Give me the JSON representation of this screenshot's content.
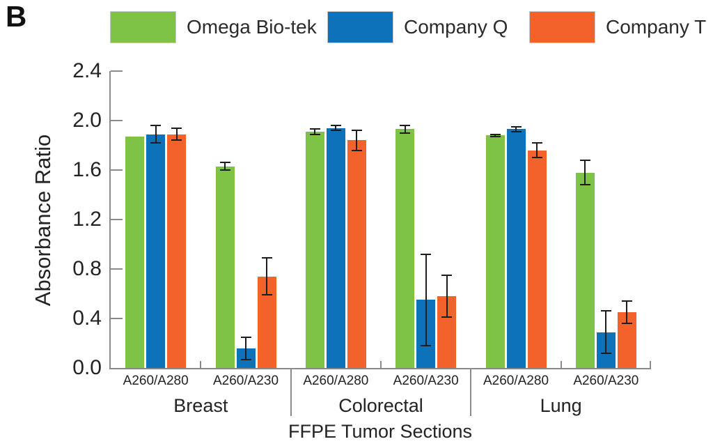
{
  "panel_label": "B",
  "legend": {
    "items": [
      {
        "label": "Omega Bio-tek",
        "color": "#7EC345"
      },
      {
        "label": "Company Q",
        "color": "#0D72B9"
      },
      {
        "label": "Company T",
        "color": "#F1632B"
      }
    ]
  },
  "chart_data": {
    "type": "bar",
    "title": "",
    "ylabel": "Absorbance Ratio",
    "xlabel": "FFPE Tumor Sections",
    "ylim": [
      0,
      2.4
    ],
    "ytick_step": 0.4,
    "ytick_labels": [
      "0.0",
      "0.4",
      "0.8",
      "1.2",
      "1.6",
      "2.0",
      "2.4"
    ],
    "grid": false,
    "legend_position": "top",
    "error_bars": true,
    "series": [
      "Omega Bio-tek",
      "Company Q",
      "Company T"
    ],
    "series_colors": [
      "#7EC345",
      "#0D72B9",
      "#F1632B"
    ],
    "groups": [
      {
        "label": "Breast",
        "categories": [
          "A260/A280",
          "A260/A230"
        ],
        "values": [
          [
            1.87,
            1.89,
            1.89
          ],
          [
            1.63,
            0.16,
            0.74
          ]
        ],
        "errors": [
          [
            0,
            0.07,
            0.05
          ],
          [
            0.03,
            0.09,
            0.15
          ]
        ]
      },
      {
        "label": "Colorectal",
        "categories": [
          "A260/A280",
          "A260/A230"
        ],
        "values": [
          [
            1.91,
            1.94,
            1.84
          ],
          [
            1.93,
            0.55,
            0.58
          ]
        ],
        "errors": [
          [
            0.02,
            0.02,
            0.08
          ],
          [
            0.03,
            0.37,
            0.17
          ]
        ]
      },
      {
        "label": "Lung",
        "categories": [
          "A260/A280",
          "A260/A230"
        ],
        "values": [
          [
            1.88,
            1.93,
            1.76
          ],
          [
            1.58,
            0.29,
            0.45
          ]
        ],
        "errors": [
          [
            0.01,
            0.02,
            0.06
          ],
          [
            0.1,
            0.17,
            0.09
          ]
        ]
      }
    ]
  }
}
